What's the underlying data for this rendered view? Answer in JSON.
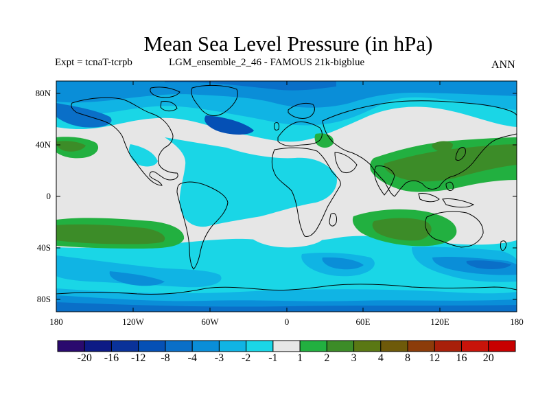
{
  "title": "Mean Sea Level Pressure (in hPa)",
  "subtitle_experiment": "Expt = tcnaT-tcrpb",
  "subtitle_run": "LGM_ensemble_2_46 - FAMOUS 21k-bigblue",
  "season": "ANN",
  "lat_ticks": [
    "80N",
    "40N",
    "0",
    "40S",
    "80S"
  ],
  "lon_ticks": [
    "180",
    "120W",
    "60W",
    "0",
    "60E",
    "120E",
    "180"
  ],
  "colorbar": {
    "colors": [
      "#2a0a6e",
      "#0d1a85",
      "#0a3299",
      "#0550b5",
      "#0a6fc8",
      "#0a8ed8",
      "#10b4e4",
      "#1ad6e6",
      "#e6e6e6",
      "#22b040",
      "#3c8c28",
      "#5a7814",
      "#6e5a0a",
      "#8c3c0a",
      "#a8200a",
      "#c8140a",
      "#c80000"
    ],
    "labels": [
      "-20",
      "-16",
      "-12",
      "-8",
      "-4",
      "-3",
      "-2",
      "-1",
      "1",
      "2",
      "3",
      "4",
      "8",
      "12",
      "16",
      "20"
    ]
  }
}
